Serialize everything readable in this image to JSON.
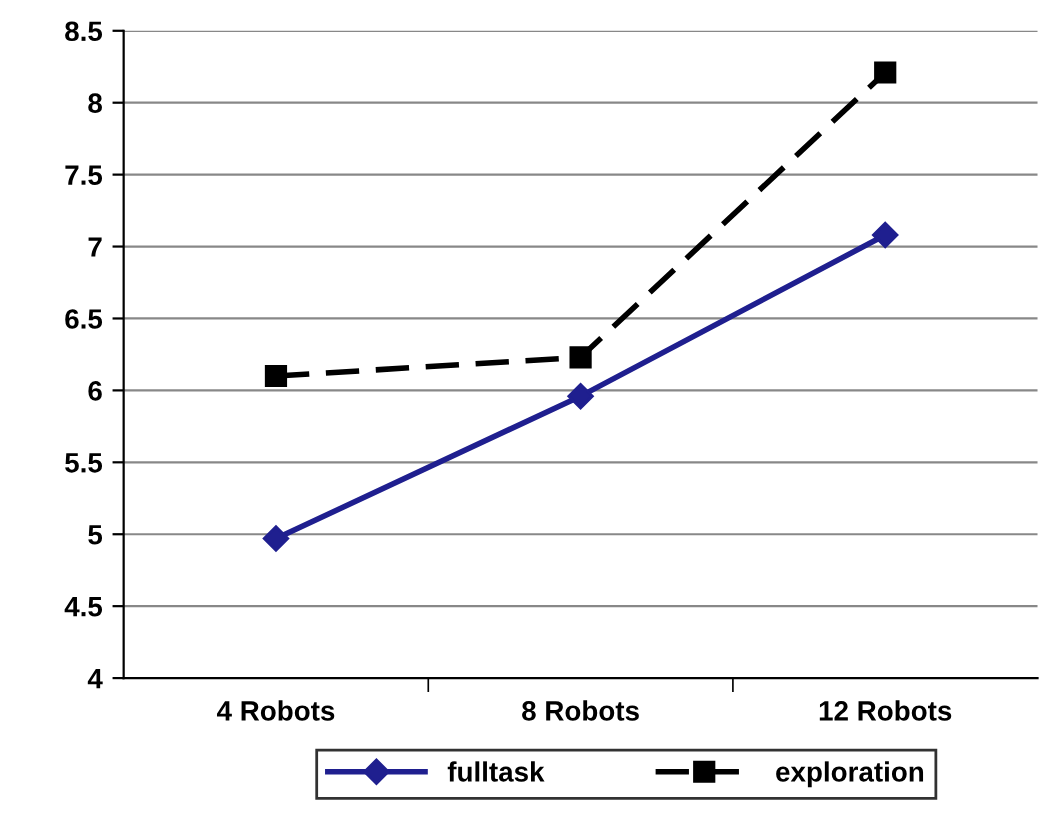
{
  "chart_data": {
    "type": "line",
    "categories": [
      "4 Robots",
      "8 Robots",
      "12 Robots"
    ],
    "series": [
      {
        "name": "fulltask",
        "color": "#1f1f8f",
        "values": [
          4.97,
          5.96,
          7.08
        ],
        "marker": "diamond",
        "line_style": "solid"
      },
      {
        "name": "exploration",
        "color": "#000000",
        "values": [
          6.1,
          6.23,
          8.21
        ],
        "marker": "square",
        "line_style": "dashed"
      }
    ],
    "ylim": [
      4,
      8.5
    ],
    "yticks": [
      4,
      {
        "value": 4.5,
        "label": "4.5"
      },
      5,
      {
        "value": 5.5,
        "label": "5.5"
      },
      6,
      {
        "value": 6.5,
        "label": "6.5"
      },
      7,
      {
        "value": 7.5,
        "label": "7.5"
      },
      8,
      {
        "value": 8.5,
        "label": "8.5"
      }
    ],
    "grid": "y",
    "legend": "bottom"
  }
}
